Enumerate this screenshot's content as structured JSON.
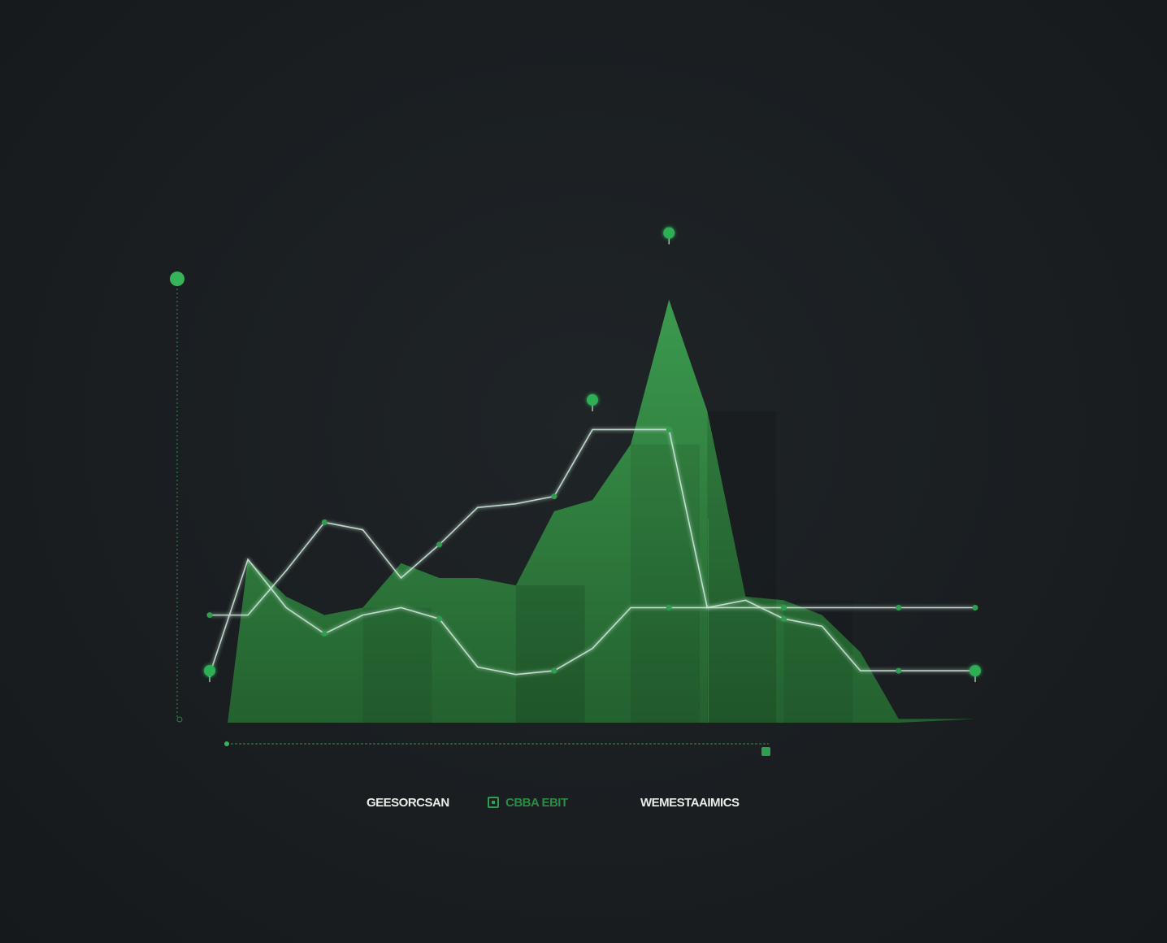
{
  "chart_data": {
    "type": "area",
    "title": "",
    "xlabel": "",
    "ylabel": "",
    "grid": false,
    "legend_position": "bottom",
    "x": [
      0,
      1,
      2,
      3,
      4,
      5,
      6,
      7,
      8,
      9,
      10,
      11,
      12,
      13,
      14,
      15,
      16,
      17,
      18,
      19,
      20
    ],
    "series": [
      {
        "name": "GEESORCSAN",
        "kind": "area",
        "color": "#2f7f3f",
        "values": [
          14,
          44,
          34,
          29,
          31,
          43,
          39,
          39,
          37,
          57,
          60,
          75,
          114,
          84,
          34,
          33,
          29,
          19,
          1,
          1,
          1
        ]
      },
      {
        "name": "CBBA EBIT",
        "kind": "line",
        "color": "#cfeadb",
        "values": [
          13,
          44,
          31,
          24,
          29,
          31,
          28,
          15,
          13,
          14,
          20,
          31,
          31,
          31,
          31,
          31,
          31,
          31,
          31,
          31,
          31
        ]
      },
      {
        "name": "WEMESTAAIMICS",
        "kind": "line",
        "color": "#cfeadb",
        "values": [
          29,
          29,
          41,
          54,
          52,
          39,
          48,
          58,
          59,
          61,
          79,
          79,
          79,
          31,
          33,
          28,
          26,
          14,
          14,
          14,
          14
        ]
      }
    ],
    "markers": [
      {
        "series": "GEESORCSAN",
        "x": 12,
        "y": 132
      },
      {
        "series": "CBBA EBIT",
        "x": 10,
        "y": 87
      },
      {
        "series": "WEMESTAAIMICS",
        "x": 20,
        "y": 14
      },
      {
        "series": "CBBA EBIT",
        "x": 0,
        "y": 14
      }
    ],
    "ylim": [
      0,
      140
    ]
  },
  "legend": {
    "items": [
      {
        "label": "GEESORCSAN",
        "color": "#e8ece9",
        "swatch": false
      },
      {
        "label": "CBBA EBIT",
        "color": "#2c8a45",
        "swatch": true
      },
      {
        "label": "WEMESTAAIMICS",
        "color": "#e8ece9",
        "swatch": false
      }
    ]
  },
  "colors": {
    "background": "#1a1e21",
    "accent": "#2f9e4f",
    "area_light": "#3a9a4d",
    "area_dark": "#245f33",
    "line": "#cfeadb",
    "axis": "#2c7a40"
  }
}
